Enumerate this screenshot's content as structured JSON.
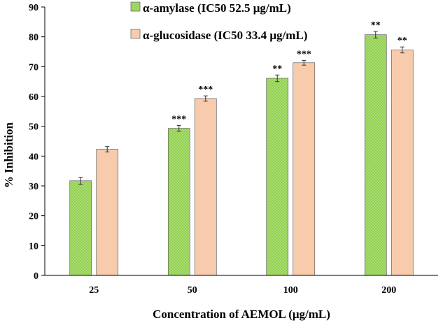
{
  "chart_data": {
    "type": "bar",
    "title": "",
    "xlabel": "Concentration of AEMOL (μg/mL)",
    "ylabel": "% Inhibition",
    "ylim": [
      0,
      90
    ],
    "yticks": [
      0,
      10,
      20,
      30,
      40,
      50,
      60,
      70,
      80,
      90
    ],
    "categories": [
      "25",
      "50",
      "100",
      "200"
    ],
    "legend_position": "top-center",
    "series": [
      {
        "name": "α-amylase (IC50 52.5 μg/mL)",
        "color": "#92d050",
        "pattern": "dotted",
        "values": [
          31.7,
          49.3,
          66.1,
          80.7
        ],
        "errors": [
          1.2,
          1.0,
          1.1,
          1.1
        ],
        "significance": [
          "",
          "***",
          "**",
          "**"
        ]
      },
      {
        "name": "α-glucosidase (IC50 33.4 μg/mL)",
        "color": "#f8cbad",
        "pattern": "solid",
        "values": [
          42.3,
          59.3,
          71.3,
          75.6
        ],
        "errors": [
          0.9,
          0.9,
          0.8,
          1.0
        ],
        "significance": [
          "",
          "***",
          "***",
          "**"
        ]
      }
    ]
  }
}
